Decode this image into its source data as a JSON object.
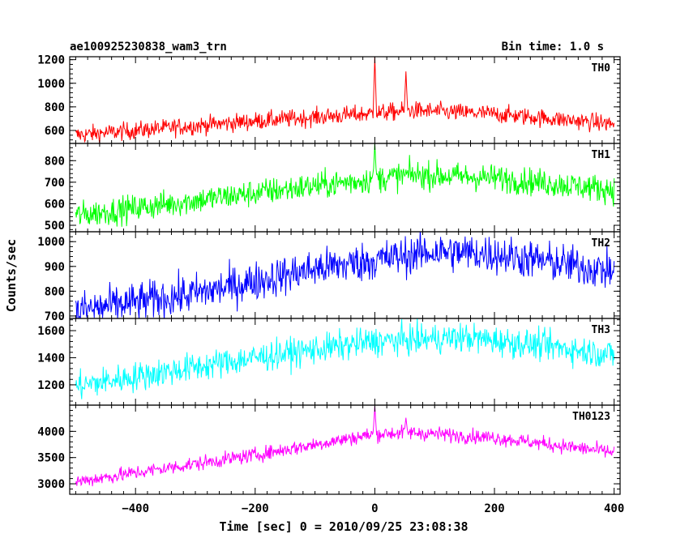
{
  "header": {
    "title": "ae100925230838_wam3_trn",
    "bin_time": "Bin time: 1.0 s"
  },
  "chart_data": {
    "type": "line",
    "xlabel": "Time [sec] 0 = 2010/09/25 23:08:38",
    "ylabel": "Counts/sec",
    "xlim": [
      -510,
      410
    ],
    "x_ticks": [
      -400,
      -200,
      0,
      200,
      400
    ],
    "x_tick_labels": [
      "−400",
      "−200",
      "0",
      "200",
      "400"
    ],
    "x_range": [
      -500,
      400
    ],
    "bin_time_s": 1.0,
    "grid": false,
    "panels": [
      {
        "name": "TH0",
        "color": "#ff0000",
        "ylim": [
          490,
          1225
        ],
        "y_ticks": [
          600,
          800,
          1000,
          1200
        ],
        "trend": [
          [
            -500,
            560
          ],
          [
            -200,
            680
          ],
          [
            0,
            745
          ],
          [
            60,
            770
          ],
          [
            200,
            740
          ],
          [
            400,
            655
          ]
        ],
        "noise": 38,
        "spikes": [
          [
            0,
            1225
          ],
          [
            52,
            1100
          ]
        ]
      },
      {
        "name": "TH1",
        "color": "#00ff00",
        "ylim": [
          470,
          880
        ],
        "y_ticks": [
          500,
          600,
          700,
          800
        ],
        "trend": [
          [
            -500,
            545
          ],
          [
            -200,
            650
          ],
          [
            0,
            715
          ],
          [
            60,
            735
          ],
          [
            200,
            720
          ],
          [
            400,
            665
          ]
        ],
        "noise": 32,
        "spikes": [
          [
            0,
            880
          ]
        ]
      },
      {
        "name": "TH2",
        "color": "#0000ff",
        "ylim": [
          690,
          1040
        ],
        "y_ticks": [
          700,
          800,
          900,
          1000
        ],
        "trend": [
          [
            -500,
            720
          ],
          [
            -300,
            790
          ],
          [
            -100,
            890
          ],
          [
            100,
            960
          ],
          [
            200,
            950
          ],
          [
            400,
            880
          ]
        ],
        "noise": 40,
        "spikes": []
      },
      {
        "name": "TH3",
        "color": "#00ffff",
        "ylim": [
          1050,
          1690
        ],
        "y_ticks": [
          1200,
          1400,
          1600
        ],
        "trend": [
          [
            -500,
            1190
          ],
          [
            -200,
            1400
          ],
          [
            0,
            1520
          ],
          [
            150,
            1550
          ],
          [
            300,
            1480
          ],
          [
            400,
            1420
          ]
        ],
        "noise": 55,
        "spikes": []
      },
      {
        "name": "TH0123",
        "color": "#ff00ff",
        "ylim": [
          2800,
          4500
        ],
        "y_ticks": [
          3000,
          3500,
          4000
        ],
        "trend": [
          [
            -500,
            3040
          ],
          [
            -200,
            3550
          ],
          [
            0,
            3950
          ],
          [
            60,
            3980
          ],
          [
            200,
            3880
          ],
          [
            400,
            3600
          ]
        ],
        "noise": 70,
        "spikes": [
          [
            0,
            4480
          ],
          [
            52,
            4260
          ]
        ]
      }
    ]
  }
}
